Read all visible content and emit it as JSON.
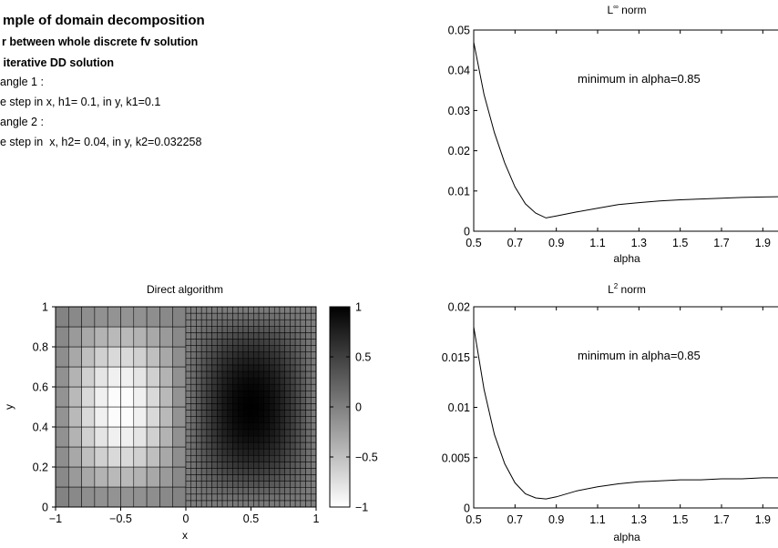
{
  "text_block": {
    "title": "mple of domain decomposition",
    "lines_bold": [
      "r between whole discrete fv solution",
      " iterative DD solution"
    ],
    "lines": [
      "angle 1 :",
      "e step in x, h1= 0.1, in y, k1=0.1",
      "angle 2 :",
      "e step in  x, h2= 0.04, in y, k2=0.032258"
    ]
  },
  "colors": {
    "axis": "#000000",
    "line": "#000000",
    "background": "#ffffff"
  },
  "chart_data": [
    {
      "id": "linf",
      "type": "line",
      "title": "L∞ norm",
      "title_base": "L",
      "title_sup": "∞",
      "title_rest": " norm",
      "xlabel": "alpha",
      "ylabel": "",
      "xlim": [
        0.5,
        2.0
      ],
      "ylim": [
        0,
        0.05
      ],
      "xticks": [
        0.5,
        0.7,
        0.9,
        1.1,
        1.3,
        1.5,
        1.7,
        1.9
      ],
      "xtick_labels": [
        "0.5",
        "0.7",
        "0.9",
        "1.1",
        "1.3",
        "1.5",
        "1.7",
        "1.9"
      ],
      "yticks": [
        0,
        0.01,
        0.02,
        0.03,
        0.04,
        0.05
      ],
      "ytick_labels": [
        "0",
        "0.01",
        "0.02",
        "0.03",
        "0.04",
        "0.05"
      ],
      "annotation": "minimum in alpha=0.85",
      "grid": false,
      "series": [
        {
          "x": [
            0.5,
            0.55,
            0.6,
            0.65,
            0.7,
            0.75,
            0.8,
            0.85,
            0.9,
            1.0,
            1.1,
            1.2,
            1.3,
            1.4,
            1.5,
            1.6,
            1.7,
            1.8,
            1.9,
            2.0
          ],
          "y": [
            0.047,
            0.034,
            0.0245,
            0.017,
            0.011,
            0.0068,
            0.0045,
            0.0033,
            0.0038,
            0.0048,
            0.0057,
            0.0066,
            0.0071,
            0.0075,
            0.0078,
            0.008,
            0.0082,
            0.0084,
            0.0085,
            0.0086
          ]
        }
      ]
    },
    {
      "id": "l2",
      "type": "line",
      "title": "L2 norm",
      "title_base": "L",
      "title_sup": "2",
      "title_rest": " norm",
      "xlabel": "alpha",
      "ylabel": "",
      "xlim": [
        0.5,
        2.0
      ],
      "ylim": [
        0,
        0.02
      ],
      "xticks": [
        0.5,
        0.7,
        0.9,
        1.1,
        1.3,
        1.5,
        1.7,
        1.9
      ],
      "xtick_labels": [
        "0.5",
        "0.7",
        "0.9",
        "1.1",
        "1.3",
        "1.5",
        "1.7",
        "1.9"
      ],
      "yticks": [
        0,
        0.005,
        0.01,
        0.015,
        0.02
      ],
      "ytick_labels": [
        "0",
        "0.005",
        "0.01",
        "0.015",
        "0.02"
      ],
      "annotation": "minimum in alpha=0.85",
      "grid": false,
      "series": [
        {
          "x": [
            0.5,
            0.55,
            0.6,
            0.65,
            0.7,
            0.75,
            0.8,
            0.85,
            0.9,
            1.0,
            1.1,
            1.2,
            1.3,
            1.4,
            1.5,
            1.6,
            1.7,
            1.8,
            1.9,
            2.0
          ],
          "y": [
            0.018,
            0.0118,
            0.0073,
            0.0044,
            0.0025,
            0.0014,
            0.001,
            0.0009,
            0.0011,
            0.0017,
            0.0021,
            0.0024,
            0.0026,
            0.0027,
            0.0028,
            0.0028,
            0.0029,
            0.0029,
            0.003,
            0.003
          ]
        }
      ]
    },
    {
      "id": "direct",
      "type": "heatmap",
      "title": "Direct algorithm",
      "xlabel": "x",
      "ylabel": "y",
      "xlim": [
        -1,
        1
      ],
      "ylim": [
        0,
        1
      ],
      "xticks": [
        -1,
        -0.5,
        0,
        0.5,
        1
      ],
      "xtick_labels": [
        "−1",
        "−0.5",
        "0",
        "0.5",
        "1"
      ],
      "yticks": [
        0,
        0.2,
        0.4,
        0.6,
        0.8,
        1
      ],
      "ytick_labels": [
        "0",
        "0.2",
        "0.4",
        "0.6",
        "0.8",
        "1"
      ],
      "field": "sin(pi*x)*sin(pi*y)",
      "color_range": [
        -1,
        1
      ],
      "colormap": "gray-reversed (white=-1, black=1)",
      "grids": [
        {
          "xlim": [
            -1,
            0
          ],
          "h": 0.1,
          "k": 0.1
        },
        {
          "xlim": [
            0,
            1
          ],
          "h": 0.04,
          "k": 0.032258
        }
      ],
      "colorbar": {
        "ticks": [
          1,
          0.5,
          0,
          -0.5,
          -1
        ],
        "tick_labels": [
          "1",
          "0.5",
          "0",
          "−0.5",
          "−1"
        ]
      }
    }
  ]
}
